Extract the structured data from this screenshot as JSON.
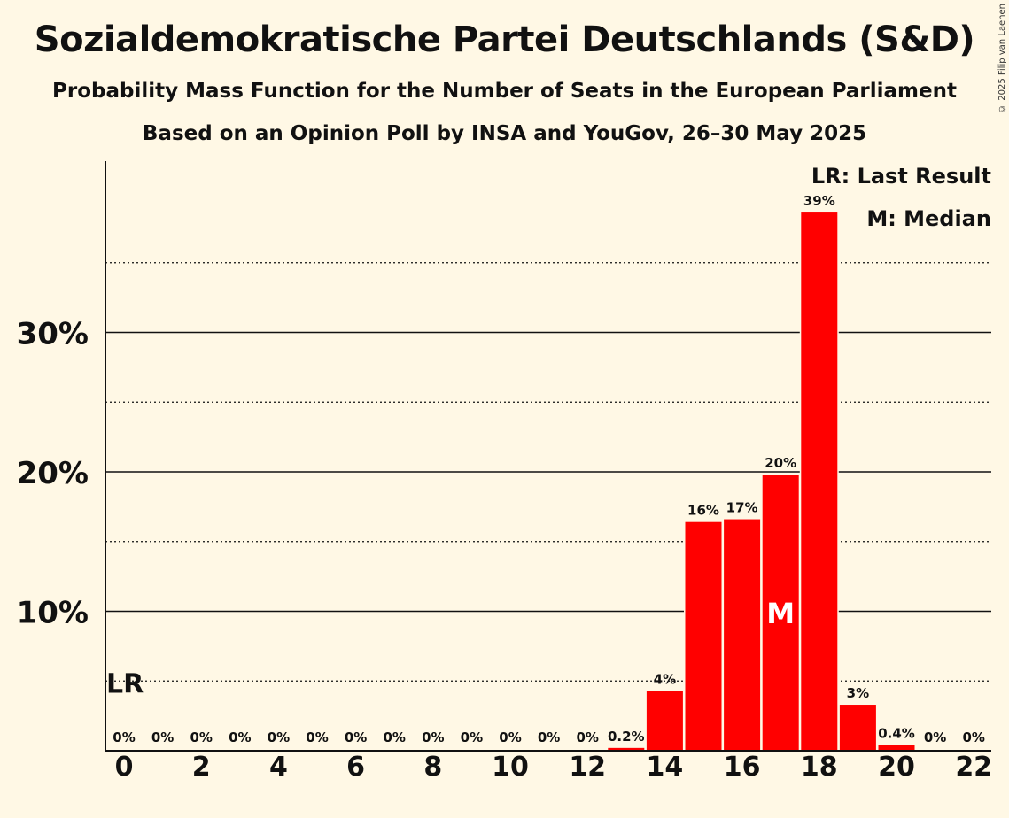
{
  "header": {
    "title": "Sozialdemokratische Partei Deutschlands (S&D)",
    "subtitle": "Probability Mass Function for the Number of Seats in the European Parliament",
    "subtitle2": "Based on an Opinion Poll by INSA and YouGov, 26–30 May 2025",
    "copyright": "© 2025 Filip van Laenen"
  },
  "legend": {
    "last_result": "LR: Last Result",
    "median": "M: Median"
  },
  "colors": {
    "bar": "#FF0000",
    "background": "#FFF8E5",
    "text": "#111111",
    "median_marker": "#FFFFFF"
  },
  "chart_data": {
    "type": "bar",
    "categories": [
      "0",
      "1",
      "2",
      "3",
      "4",
      "5",
      "6",
      "7",
      "8",
      "9",
      "10",
      "11",
      "12",
      "13",
      "14",
      "15",
      "16",
      "17",
      "18",
      "19",
      "20",
      "21",
      "22"
    ],
    "values": [
      0,
      0,
      0,
      0,
      0,
      0,
      0,
      0,
      0,
      0,
      0,
      0,
      0,
      0.2,
      4.3,
      16.4,
      16.6,
      19.8,
      38.6,
      3.3,
      0.4,
      0,
      0
    ],
    "data_labels": [
      "0%",
      "0%",
      "0%",
      "0%",
      "0%",
      "0%",
      "0%",
      "0%",
      "0%",
      "0%",
      "0%",
      "0%",
      "0%",
      "0.2%",
      "4%",
      "16%",
      "17%",
      "20%",
      "39%",
      "3%",
      "0.4%",
      "0%",
      "0%"
    ],
    "x_ticks": [
      "0",
      "2",
      "4",
      "6",
      "8",
      "10",
      "12",
      "14",
      "16",
      "18",
      "20",
      "22"
    ],
    "y_ticks": [
      {
        "value": 10,
        "label": "10%"
      },
      {
        "value": 20,
        "label": "20%"
      },
      {
        "value": 30,
        "label": "30%"
      }
    ],
    "y_minor_gridlines": [
      5,
      15,
      25,
      35
    ],
    "ylim": [
      0,
      42
    ],
    "last_result": {
      "seat": 0,
      "value": 5,
      "label": "LR"
    },
    "median": {
      "seat": 17,
      "label": "M"
    },
    "grid": true,
    "legend_position": "top-right"
  }
}
